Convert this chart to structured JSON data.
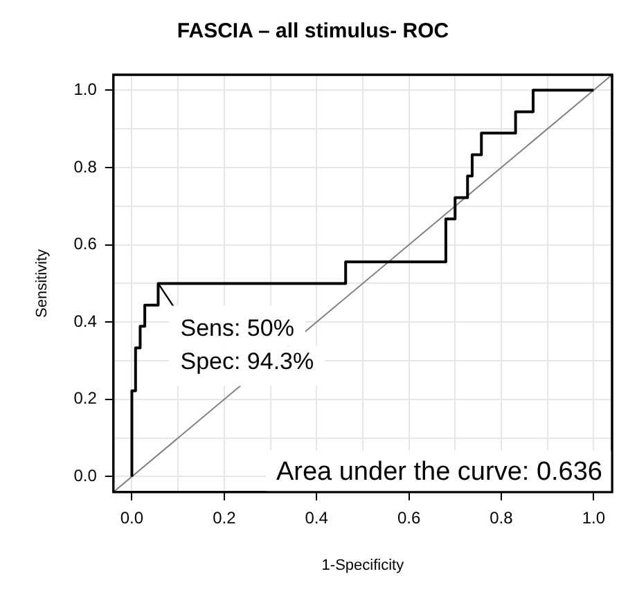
{
  "chart_data": {
    "type": "step",
    "title": "FASCIA – all stimulus- ROC",
    "xlabel": "1-Specificity",
    "ylabel": "Sensitivity",
    "xlim": [
      -0.04,
      1.04
    ],
    "ylim": [
      -0.04,
      1.04
    ],
    "xticks": [
      {
        "value": 0,
        "label": "0.0"
      },
      {
        "value": 0.1,
        "label": null
      },
      0.2,
      {
        "value": 0.3,
        "label": null
      },
      0.4,
      {
        "value": 0.5,
        "label": null
      },
      0.6,
      {
        "value": 0.7,
        "label": null
      },
      0.8,
      {
        "value": 0.9,
        "label": null
      },
      {
        "value": 1,
        "label": "1.0"
      }
    ],
    "yticks": [
      {
        "value": 0,
        "label": "0.0"
      },
      {
        "value": 0.1,
        "label": null
      },
      0.2,
      {
        "value": 0.3,
        "label": null
      },
      0.4,
      {
        "value": 0.5,
        "label": null
      },
      0.6,
      {
        "value": 0.7,
        "label": null
      },
      0.8,
      {
        "value": 0.9,
        "label": null
      },
      {
        "value": 1,
        "label": "1.0"
      }
    ],
    "grid": true,
    "legend": false,
    "marker": "none",
    "series": [
      {
        "color": "#000000",
        "x": [
          0,
          0,
          0.008,
          0.018,
          0.028,
          0.057,
          0.463,
          0.68,
          0.7,
          0.727,
          0.737,
          0.757,
          0.831,
          0.869,
          1
        ],
        "values": [
          0,
          0.222,
          0.333,
          0.389,
          0.444,
          0.5,
          0.556,
          0.667,
          0.722,
          0.778,
          0.833,
          0.889,
          0.944,
          1,
          1
        ]
      },
      {
        "type": "line",
        "color": "#808080",
        "x": [
          -0.04,
          1.04
        ],
        "values": [
          -0.04,
          1.04
        ]
      }
    ],
    "annotations": [
      {
        "text": "Sens: 50%",
        "x": 0.057,
        "y": 0.5
      },
      {
        "text": "Spec: 94.3%",
        "x": 0.057,
        "y": 0.5
      },
      "Area under the curve: 0.636"
    ]
  }
}
